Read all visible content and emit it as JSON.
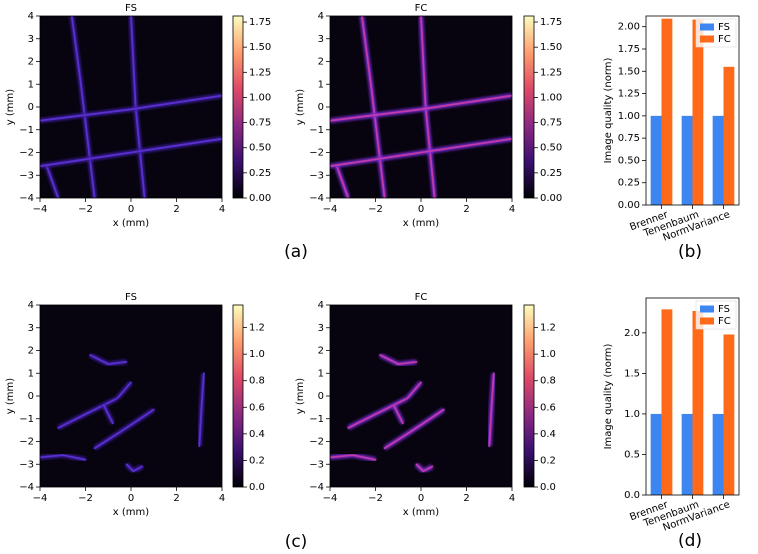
{
  "panel_labels": [
    "(a)",
    "(b)",
    "(c)",
    "(d)"
  ],
  "chart_data": [
    {
      "type": "heatmap",
      "title": "FS",
      "xlabel": "x (mm)",
      "ylabel": "y (mm)",
      "xlim": [
        -4,
        4
      ],
      "ylim": [
        -4,
        4
      ],
      "xticks": [
        {
          "value": -4,
          "label": "−4"
        },
        {
          "value": -2,
          "label": "−2"
        },
        0,
        2,
        4
      ],
      "yticks": [
        {
          "value": -4,
          "label": "−4"
        },
        {
          "value": -3,
          "label": "−3"
        },
        {
          "value": -2,
          "label": "−2"
        },
        {
          "value": -1,
          "label": "−1"
        },
        0,
        1,
        2,
        3,
        4
      ],
      "colormap": "magma",
      "clim": [
        0,
        1.81
      ],
      "cticks": [
        {
          "value": 0,
          "label": "0.00"
        },
        {
          "value": 0.25,
          "label": "0.25"
        },
        {
          "value": 0.5,
          "label": "0.50"
        },
        {
          "value": 0.75,
          "label": "0.75"
        },
        {
          "value": 1,
          "label": "1.00"
        },
        {
          "value": 1.25,
          "label": "1.25"
        },
        {
          "value": 1.5,
          "label": "1.50"
        },
        {
          "value": 1.75,
          "label": "1.75"
        }
      ]
    },
    {
      "type": "heatmap",
      "title": "FC",
      "xlabel": "x (mm)",
      "ylabel": "y (mm)",
      "xlim": [
        -4,
        4
      ],
      "ylim": [
        -4,
        4
      ],
      "xticks": [
        {
          "value": -4,
          "label": "−4"
        },
        {
          "value": -2,
          "label": "−2"
        },
        0,
        2,
        4
      ],
      "yticks": [
        {
          "value": -4,
          "label": "−4"
        },
        {
          "value": -3,
          "label": "−3"
        },
        {
          "value": -2,
          "label": "−2"
        },
        {
          "value": -1,
          "label": "−1"
        },
        0,
        1,
        2,
        3,
        4
      ],
      "colormap": "magma",
      "clim": [
        0,
        1.81
      ],
      "cticks": [
        {
          "value": 0,
          "label": "0.00"
        },
        {
          "value": 0.25,
          "label": "0.25"
        },
        {
          "value": 0.5,
          "label": "0.50"
        },
        {
          "value": 0.75,
          "label": "0.75"
        },
        {
          "value": 1,
          "label": "1.00"
        },
        {
          "value": 1.25,
          "label": "1.25"
        },
        {
          "value": 1.5,
          "label": "1.50"
        },
        {
          "value": 1.75,
          "label": "1.75"
        }
      ]
    },
    {
      "type": "bar",
      "ylabel": "Image quality (norm)",
      "categories": [
        "Brenner",
        "Tenenbaum",
        "NormVariance"
      ],
      "series": [
        {
          "name": "FS",
          "color": "#3d85f0",
          "values": [
            1,
            1,
            1
          ]
        },
        {
          "name": "FC",
          "color": "#ff6a1a",
          "values": [
            2.09,
            2.08,
            1.55
          ]
        }
      ],
      "ylim": [
        0,
        2.12
      ],
      "yticks": [
        {
          "value": 0,
          "label": "0.00"
        },
        {
          "value": 0.25,
          "label": "0.25"
        },
        {
          "value": 0.5,
          "label": "0.50"
        },
        {
          "value": 0.75,
          "label": "0.75"
        },
        {
          "value": 1,
          "label": "1.00"
        },
        {
          "value": 1.25,
          "label": "1.25"
        },
        {
          "value": 1.5,
          "label": "1.50"
        },
        {
          "value": 1.75,
          "label": "1.75"
        },
        {
          "value": 2,
          "label": "2.00"
        }
      ],
      "legend": "upper right"
    },
    {
      "type": "heatmap",
      "title": "FS",
      "xlabel": "x (mm)",
      "ylabel": "y (mm)",
      "xlim": [
        -4,
        4
      ],
      "ylim": [
        -4,
        4
      ],
      "xticks": [
        {
          "value": -4,
          "label": "−4"
        },
        {
          "value": -2,
          "label": "−2"
        },
        0,
        2,
        4
      ],
      "yticks": [
        {
          "value": -4,
          "label": "−4"
        },
        {
          "value": -3,
          "label": "−3"
        },
        {
          "value": -2,
          "label": "−2"
        },
        {
          "value": -1,
          "label": "−1"
        },
        0,
        1,
        2,
        3,
        4
      ],
      "colormap": "magma",
      "clim": [
        0,
        1.37
      ],
      "cticks": [
        {
          "value": 0,
          "label": "0.0"
        },
        {
          "value": 0.2,
          "label": "0.2"
        },
        {
          "value": 0.4,
          "label": "0.4"
        },
        {
          "value": 0.6,
          "label": "0.6"
        },
        {
          "value": 0.8,
          "label": "0.8"
        },
        {
          "value": 1,
          "label": "1.0"
        },
        {
          "value": 1.2,
          "label": "1.2"
        }
      ]
    },
    {
      "type": "heatmap",
      "title": "FC",
      "xlabel": "x (mm)",
      "ylabel": "y (mm)",
      "xlim": [
        -4,
        4
      ],
      "ylim": [
        -4,
        4
      ],
      "xticks": [
        {
          "value": -4,
          "label": "−4"
        },
        {
          "value": -2,
          "label": "−2"
        },
        0,
        2,
        4
      ],
      "yticks": [
        {
          "value": -4,
          "label": "−4"
        },
        {
          "value": -3,
          "label": "−3"
        },
        {
          "value": -2,
          "label": "−2"
        },
        {
          "value": -1,
          "label": "−1"
        },
        0,
        1,
        2,
        3,
        4
      ],
      "colormap": "magma",
      "clim": [
        0,
        1.37
      ],
      "cticks": [
        {
          "value": 0,
          "label": "0.0"
        },
        {
          "value": 0.2,
          "label": "0.2"
        },
        {
          "value": 0.4,
          "label": "0.4"
        },
        {
          "value": 0.6,
          "label": "0.6"
        },
        {
          "value": 0.8,
          "label": "0.8"
        },
        {
          "value": 1,
          "label": "1.0"
        },
        {
          "value": 1.2,
          "label": "1.2"
        }
      ]
    },
    {
      "type": "bar",
      "ylabel": "Image quality (norm)",
      "categories": [
        "Brenner",
        "Tenenbaum",
        "NormVariance"
      ],
      "series": [
        {
          "name": "FS",
          "color": "#3d85f0",
          "values": [
            1,
            1,
            1
          ]
        },
        {
          "name": "FC",
          "color": "#ff6a1a",
          "values": [
            2.29,
            2.27,
            1.98
          ]
        }
      ],
      "ylim": [
        0,
        2.43
      ],
      "yticks": [
        {
          "value": 0,
          "label": "0.0"
        },
        {
          "value": 0.5,
          "label": "0.5"
        },
        {
          "value": 1,
          "label": "1.0"
        },
        {
          "value": 1.5,
          "label": "1.5"
        },
        {
          "value": 2,
          "label": "2.0"
        }
      ],
      "legend": "upper right"
    }
  ]
}
